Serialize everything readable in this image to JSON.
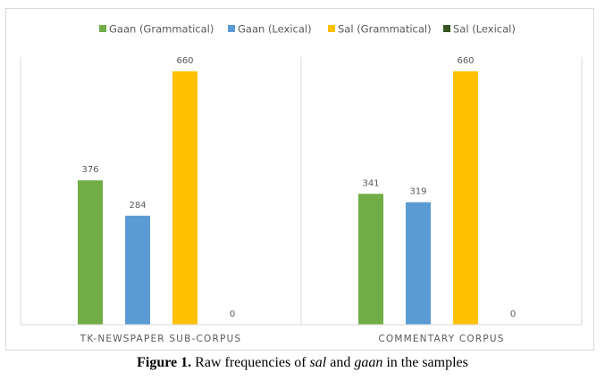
{
  "chart_data": {
    "type": "bar",
    "categories": [
      "TK-NEWSPAPER SUB-CORPUS",
      "COMMENTARY CORPUS"
    ],
    "series": [
      {
        "name": "Gaan (Grammatical)",
        "color": "#70ad47",
        "values": [
          376,
          341
        ]
      },
      {
        "name": "Gaan (Lexical)",
        "color": "#5b9bd5",
        "values": [
          284,
          319
        ]
      },
      {
        "name": "Sal (Grammatical)",
        "color": "#ffc000",
        "values": [
          660,
          660
        ]
      },
      {
        "name": "Sal (Lexical)",
        "color": "#375623",
        "values": [
          0,
          0
        ]
      }
    ],
    "ylim": [
      0,
      660
    ],
    "legend_position": "top",
    "grid": false
  },
  "caption": {
    "label": "Figure 1.",
    "text_before": " Raw frequencies of ",
    "term1": "sal",
    "text_middle": " and ",
    "term2": "gaan",
    "text_after": " in the samples"
  }
}
